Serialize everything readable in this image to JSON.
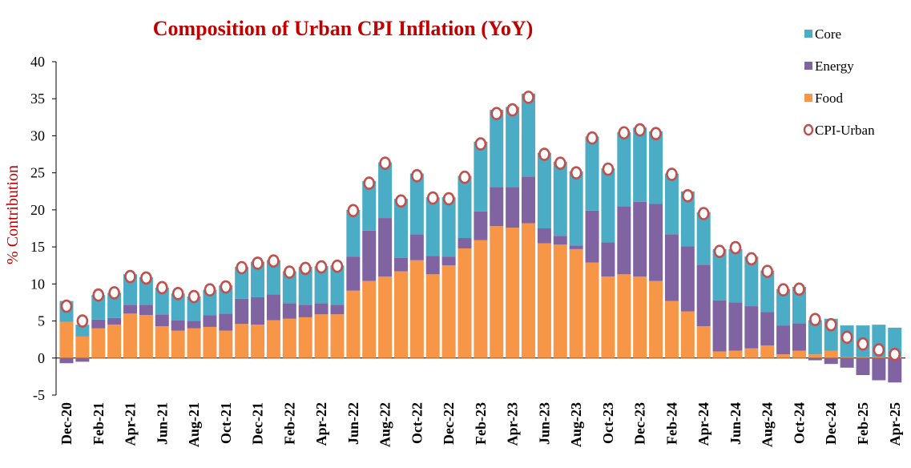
{
  "chart_data": {
    "type": "bar",
    "stacked": true,
    "title": "Composition of Urban CPI Inflation (YoY)",
    "ylabel": "% Contribution",
    "ylim": [
      -5,
      40
    ],
    "yticks": [
      -5,
      0,
      5,
      10,
      15,
      20,
      25,
      30,
      35,
      40
    ],
    "legend_position": "top-right",
    "colors": {
      "title": "#c00000",
      "ylabel": "#c00000",
      "Core": "#4bacc6",
      "Energy": "#8064a2",
      "Food": "#f79646",
      "CPI-Urban": "#c0504d"
    },
    "categories": [
      "Dec-20",
      "Jan-21",
      "Feb-21",
      "Mar-21",
      "Apr-21",
      "May-21",
      "Jun-21",
      "Jul-21",
      "Aug-21",
      "Sep-21",
      "Oct-21",
      "Nov-21",
      "Dec-21",
      "Jan-22",
      "Feb-22",
      "Mar-22",
      "Apr-22",
      "May-22",
      "Jun-22",
      "Jul-22",
      "Aug-22",
      "Sep-22",
      "Oct-22",
      "Nov-22",
      "Dec-22",
      "Jan-23",
      "Feb-23",
      "Mar-23",
      "Apr-23",
      "May-23",
      "Jun-23",
      "Jul-23",
      "Aug-23",
      "Sep-23",
      "Oct-23",
      "Nov-23",
      "Dec-23",
      "Jan-24",
      "Feb-24",
      "Mar-24",
      "Apr-24",
      "May-24",
      "Jun-24",
      "Jul-24",
      "Aug-24",
      "Sep-24",
      "Oct-24",
      "Nov-24",
      "Dec-24",
      "Jan-25",
      "Feb-25",
      "Mar-25",
      "Apr-25"
    ],
    "tick_labels": [
      "Dec-20",
      "Feb-21",
      "Apr-21",
      "Jun-21",
      "Aug-21",
      "Oct-21",
      "Dec-21",
      "Feb-22",
      "Apr-22",
      "Jun-22",
      "Aug-22",
      "Oct-22",
      "Dec-22",
      "Feb-23",
      "Apr-23",
      "Jun-23",
      "Aug-23",
      "Oct-23",
      "Dec-23",
      "Feb-24",
      "Apr-24",
      "Jun-24",
      "Aug-24",
      "Oct-24",
      "Dec-24",
      "Feb-25",
      "Apr-25"
    ],
    "series": [
      {
        "name": "Food",
        "values": [
          4.9,
          2.9,
          4.0,
          4.5,
          6.0,
          5.8,
          4.3,
          3.7,
          4.0,
          4.2,
          3.7,
          4.6,
          4.5,
          5.1,
          5.3,
          5.5,
          5.9,
          5.9,
          9.1,
          10.4,
          11.0,
          11.7,
          13.2,
          11.3,
          12.5,
          14.8,
          15.9,
          17.8,
          17.6,
          18.2,
          15.5,
          15.3,
          14.7,
          12.9,
          11.0,
          11.3,
          11.0,
          10.4,
          7.7,
          6.3,
          4.3,
          0.9,
          1.0,
          1.3,
          1.7,
          0.5,
          1.0,
          0.5,
          1.0,
          0.1,
          0.1,
          0.1,
          0.1
        ]
      },
      {
        "name": "Energy",
        "values": [
          -0.7,
          -0.5,
          1.2,
          0.9,
          1.2,
          1.4,
          1.6,
          1.4,
          1.0,
          1.6,
          2.3,
          3.4,
          3.7,
          3.5,
          2.1,
          1.7,
          1.5,
          1.3,
          4.6,
          6.8,
          7.9,
          1.8,
          3.5,
          2.5,
          1.2,
          1.4,
          3.9,
          5.3,
          5.5,
          6.3,
          2.0,
          1.2,
          0.5,
          7.0,
          4.6,
          9.2,
          10.1,
          10.4,
          9.0,
          8.8,
          8.3,
          6.9,
          6.5,
          5.7,
          4.5,
          3.9,
          3.7,
          -0.3,
          -0.8,
          -1.3,
          -2.3,
          -3.0,
          -3.3
        ]
      },
      {
        "name": "Core",
        "values": [
          2.8,
          1.6,
          3.3,
          3.4,
          4.1,
          3.7,
          3.6,
          3.6,
          3.3,
          3.4,
          3.8,
          4.3,
          4.8,
          4.6,
          4.3,
          5.1,
          5.0,
          5.3,
          6.3,
          6.7,
          7.5,
          8.0,
          8.2,
          7.9,
          8.0,
          8.4,
          9.4,
          10.4,
          10.8,
          11.2,
          10.2,
          10.0,
          10.0,
          10.0,
          10.0,
          10.0,
          10.0,
          9.8,
          8.2,
          7.4,
          7.1,
          6.9,
          7.2,
          6.7,
          5.6,
          4.9,
          4.9,
          4.6,
          4.3,
          4.3,
          4.3,
          4.4,
          4.0
        ]
      },
      {
        "name": "CPI-Urban",
        "type": "scatter",
        "values": [
          7.0,
          5.0,
          8.5,
          8.8,
          11.0,
          10.8,
          9.5,
          8.7,
          8.3,
          9.2,
          9.6,
          12.2,
          12.8,
          13.1,
          11.6,
          12.1,
          12.3,
          12.4,
          19.9,
          23.6,
          26.3,
          21.2,
          24.6,
          21.6,
          21.5,
          24.4,
          28.9,
          33.0,
          33.5,
          35.2,
          27.5,
          26.3,
          25.0,
          29.7,
          25.5,
          30.4,
          30.8,
          30.3,
          24.8,
          21.9,
          19.5,
          14.4,
          14.9,
          13.4,
          11.7,
          9.2,
          9.3,
          5.2,
          4.5,
          2.8,
          1.9,
          1.1,
          0.5
        ]
      }
    ],
    "legend": [
      {
        "name": "Core",
        "marker": "square"
      },
      {
        "name": "Energy",
        "marker": "square"
      },
      {
        "name": "Food",
        "marker": "square"
      },
      {
        "name": "CPI-Urban",
        "marker": "circle"
      }
    ]
  }
}
